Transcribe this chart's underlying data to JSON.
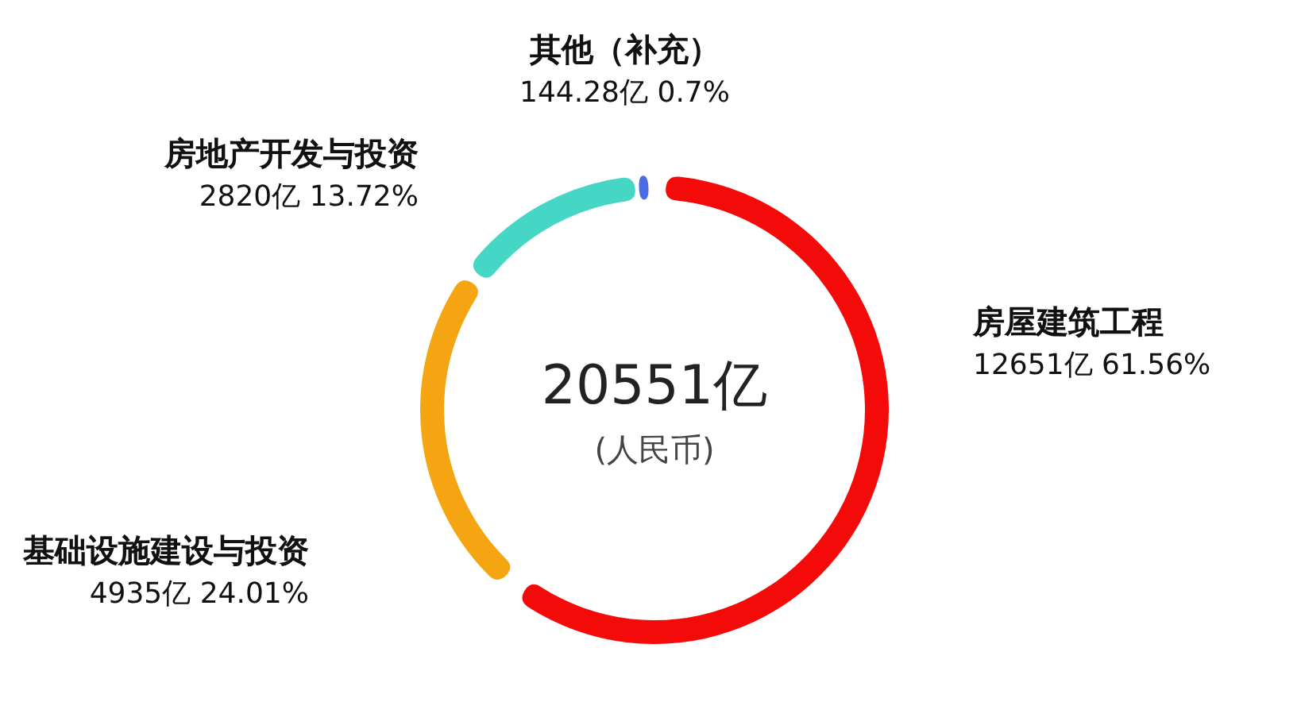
{
  "chart_data": {
    "type": "donut",
    "categories": [
      "房屋建筑工程",
      "基础设施建设与投资",
      "房地产开发与投资",
      "其他（补充）"
    ],
    "values": [
      12651,
      4935,
      2820,
      144.28
    ],
    "value_labels": [
      "12651亿 61.56%",
      "4935亿 24.01%",
      "2820亿 13.72%",
      "144.28亿 0.7%"
    ],
    "colors": [
      "#f50a0a",
      "#f5a511",
      "#45d6c6",
      "#4a6de6"
    ],
    "annotations": [
      "20551亿",
      "(人民币)"
    ],
    "legend": false
  }
}
